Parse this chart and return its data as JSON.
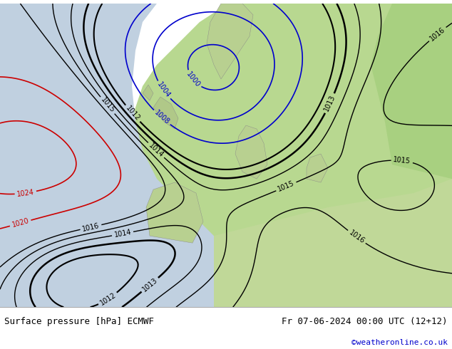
{
  "title_left": "Surface pressure [hPa] ECMWF",
  "title_right": "Fr 07-06-2024 00:00 UTC (12+12)",
  "copyright": "©weatheronline.co.uk",
  "bg_color": "#d0e8b0",
  "ocean_color": "#c8d8e8",
  "land_color": "#c8e0a0",
  "footer_bg": "#ffffff",
  "text_color_black": "#000000",
  "text_color_blue": "#0000cc",
  "text_color_red": "#cc0000",
  "isobar_low_color": "#0000cc",
  "isobar_high_color": "#cc0000",
  "isobar_mid_color": "#000000",
  "figsize": [
    6.34,
    4.9
  ],
  "dpi": 100
}
